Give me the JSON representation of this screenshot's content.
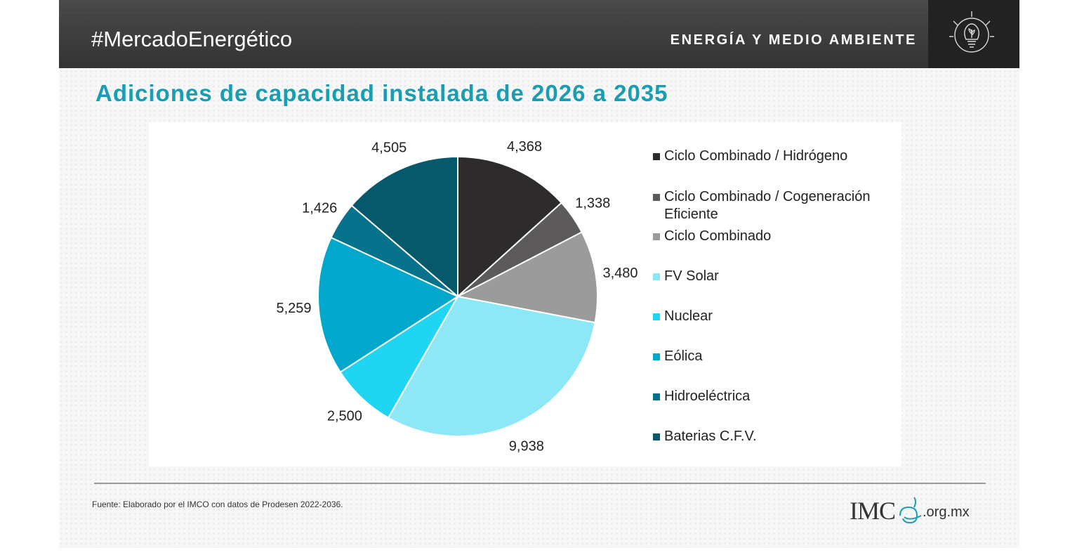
{
  "header": {
    "hashtag": "#MercadoEnergético",
    "section": "ENERGÍA Y MEDIO AMBIENTE",
    "icon": "lightbulb-leaf-icon"
  },
  "footer": {
    "source": "Fuente:  Elaborado por el IMCO  con datos de Prodesen 2022-2036.",
    "logo_main": "IMC",
    "logo_domain": ".org.mx"
  },
  "colors": {
    "title": "#1a9db1",
    "header_bg": "#3c3c3c"
  },
  "chart_data": {
    "type": "pie",
    "title": "Adiciones de capacidad instalada de 2026 a 2035",
    "legend_position": "right",
    "series": [
      {
        "name": "Ciclo Combinado / Hidrógeno",
        "label": "4,368",
        "value": 4368,
        "color": "#2d2b2b"
      },
      {
        "name": "Ciclo Combinado / Cogeneración Eficiente",
        "label": "1,338",
        "value": 1338,
        "color": "#5c5a5a"
      },
      {
        "name": "Ciclo Combinado",
        "label": "3,480",
        "value": 3480,
        "color": "#9b9b9b"
      },
      {
        "name": "FV Solar",
        "label": "9,938",
        "value": 9938,
        "color": "#8ce7f7"
      },
      {
        "name": "Nuclear",
        "label": "2,500",
        "value": 2500,
        "color": "#1fd5f2"
      },
      {
        "name": "Eólica",
        "label": "5,259",
        "value": 5259,
        "color": "#02a8cb"
      },
      {
        "name": "Hidroeléctrica",
        "label": "1,426",
        "value": 1426,
        "color": "#06728c"
      },
      {
        "name": "Baterias C.F.V.",
        "label": "4,505",
        "value": 4505,
        "color": "#06596b"
      }
    ]
  }
}
